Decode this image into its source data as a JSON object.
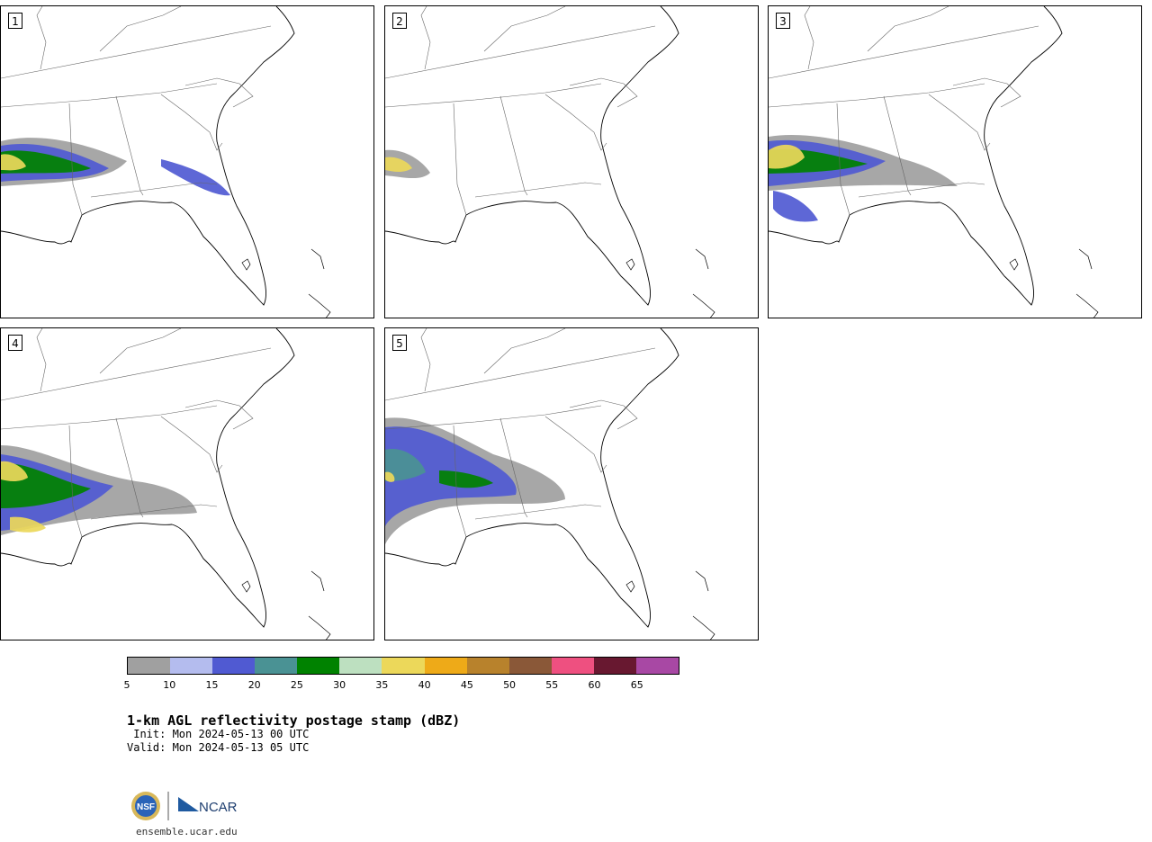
{
  "panels": [
    {
      "label": "1"
    },
    {
      "label": "2"
    },
    {
      "label": "3"
    },
    {
      "label": "4"
    },
    {
      "label": "5"
    }
  ],
  "colorbar": {
    "colors": [
      "#a0a0a0",
      "#b4bcee",
      "#505ad2",
      "#4a9294",
      "#008200",
      "#bde0c0",
      "#ecd85a",
      "#eeaa18",
      "#b8822c",
      "#8a5838",
      "#ee5080",
      "#681830",
      "#a848a4"
    ],
    "ticks": [
      "5",
      "10",
      "15",
      "20",
      "25",
      "30",
      "35",
      "40",
      "45",
      "50",
      "55",
      "60",
      "65"
    ]
  },
  "title": "1-km AGL reflectivity postage stamp (dBZ)",
  "init_text": " Init: Mon 2024-05-13 00 UTC",
  "valid_text": "Valid: Mon 2024-05-13 05 UTC",
  "logos": {
    "nsf": "NSF",
    "ncar": "NCAR"
  },
  "url": "ensemble.ucar.edu"
}
